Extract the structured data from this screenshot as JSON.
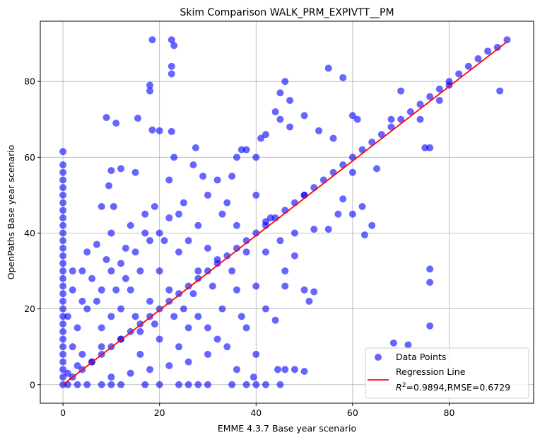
{
  "chart_data": {
    "type": "scatter",
    "title": "Skim Comparison WALK_PRM_EXPIVTT__PM",
    "xlabel": "EMME 4.3.7 Base year scenario",
    "ylabel": "OpenPaths Base year scenario",
    "xlim": [
      -4.7,
      97.5
    ],
    "ylim": [
      -4.9,
      95.9
    ],
    "xticks": [
      0,
      20,
      40,
      60,
      80
    ],
    "yticks": [
      0,
      20,
      40,
      60,
      80
    ],
    "grid": true,
    "legend_position": "bottom-right",
    "legend": {
      "points": "Data Points",
      "line_1": "Regression Line",
      "line_2": "=0.9894,RMSE=0.6729",
      "r2_symbol": "R",
      "r2_sup": "2"
    },
    "colors": {
      "points": "#0000ff",
      "line": "#ff0000"
    },
    "regression": {
      "x": [
        0,
        92
      ],
      "y": [
        0,
        90.5
      ]
    },
    "points": [
      [
        0,
        0
      ],
      [
        2,
        2
      ],
      [
        4,
        4
      ],
      [
        6,
        6
      ],
      [
        8,
        8
      ],
      [
        10,
        10
      ],
      [
        12,
        12
      ],
      [
        14,
        14
      ],
      [
        16,
        16
      ],
      [
        18,
        18
      ],
      [
        20,
        20
      ],
      [
        22,
        22
      ],
      [
        24,
        24
      ],
      [
        26,
        26
      ],
      [
        28,
        28
      ],
      [
        30,
        30
      ],
      [
        32,
        32
      ],
      [
        34,
        34
      ],
      [
        36,
        36
      ],
      [
        38,
        38
      ],
      [
        40,
        40
      ],
      [
        42,
        42
      ],
      [
        44,
        44
      ],
      [
        46,
        46
      ],
      [
        48,
        48
      ],
      [
        50,
        50
      ],
      [
        52,
        52
      ],
      [
        54,
        54
      ],
      [
        56,
        56
      ],
      [
        58,
        58
      ],
      [
        60,
        60
      ],
      [
        62,
        62
      ],
      [
        64,
        64
      ],
      [
        66,
        66
      ],
      [
        68,
        68
      ],
      [
        70,
        70
      ],
      [
        72,
        72
      ],
      [
        74,
        74
      ],
      [
        76,
        76
      ],
      [
        78,
        78
      ],
      [
        80,
        80
      ],
      [
        82,
        82
      ],
      [
        84,
        84
      ],
      [
        86,
        86
      ],
      [
        88,
        88
      ],
      [
        90,
        89
      ],
      [
        92,
        91
      ],
      [
        0,
        2
      ],
      [
        0,
        4
      ],
      [
        0,
        6
      ],
      [
        0,
        8
      ],
      [
        0,
        10
      ],
      [
        0,
        12
      ],
      [
        0,
        14
      ],
      [
        0,
        16
      ],
      [
        0,
        18
      ],
      [
        0,
        20
      ],
      [
        0,
        22
      ],
      [
        0,
        24
      ],
      [
        0,
        26
      ],
      [
        0,
        28
      ],
      [
        0,
        30
      ],
      [
        0,
        32
      ],
      [
        0,
        34
      ],
      [
        0,
        36
      ],
      [
        0,
        38
      ],
      [
        0,
        40
      ],
      [
        0,
        42
      ],
      [
        0,
        44
      ],
      [
        0,
        46
      ],
      [
        0,
        48
      ],
      [
        0,
        50
      ],
      [
        0,
        52
      ],
      [
        0,
        54
      ],
      [
        0,
        56
      ],
      [
        0,
        58
      ],
      [
        0,
        61.5
      ],
      [
        18.5,
        91
      ],
      [
        22.5,
        91
      ],
      [
        23,
        89.5
      ],
      [
        22.5,
        84
      ],
      [
        22.5,
        82
      ],
      [
        18,
        79
      ],
      [
        18,
        77.5
      ],
      [
        9,
        70.5
      ],
      [
        11,
        69
      ],
      [
        15.5,
        70.3
      ],
      [
        18.5,
        67.2
      ],
      [
        20,
        67
      ],
      [
        22.5,
        66.8
      ],
      [
        23,
        60
      ],
      [
        27.5,
        62.5
      ],
      [
        27,
        58
      ],
      [
        22,
        54
      ],
      [
        15,
        56
      ],
      [
        10,
        56.5
      ],
      [
        12,
        57
      ],
      [
        9.5,
        52.5
      ],
      [
        8,
        47
      ],
      [
        10.5,
        47
      ],
      [
        76,
        30.5
      ],
      [
        76,
        27
      ],
      [
        76,
        15.5
      ],
      [
        71.5,
        10.5
      ],
      [
        68.5,
        11
      ],
      [
        90.5,
        77.5
      ],
      [
        75,
        62.5
      ],
      [
        76,
        62.5
      ],
      [
        62.5,
        39.5
      ],
      [
        52,
        24.5
      ],
      [
        51,
        22
      ],
      [
        44.5,
        4
      ],
      [
        46,
        4
      ],
      [
        48,
        4
      ],
      [
        50,
        3.5
      ],
      [
        39.5,
        2
      ],
      [
        38,
        0
      ],
      [
        40,
        0
      ],
      [
        42,
        0
      ],
      [
        45,
        0
      ],
      [
        35,
        0
      ],
      [
        30,
        0
      ],
      [
        28,
        0
      ],
      [
        26,
        0
      ],
      [
        24,
        0
      ],
      [
        20,
        0
      ],
      [
        17,
        0
      ],
      [
        12,
        0
      ],
      [
        10,
        0
      ],
      [
        8,
        0
      ],
      [
        5,
        0
      ],
      [
        3,
        0
      ],
      [
        1,
        0
      ],
      [
        44,
        72
      ],
      [
        45,
        77
      ],
      [
        46,
        80
      ],
      [
        47,
        68
      ],
      [
        47,
        75
      ],
      [
        45,
        70
      ],
      [
        42,
        66
      ],
      [
        41,
        65
      ],
      [
        40,
        60
      ],
      [
        38,
        62
      ],
      [
        37,
        62
      ],
      [
        35,
        55
      ],
      [
        36,
        60
      ],
      [
        32,
        54
      ],
      [
        30,
        50
      ],
      [
        25,
        48
      ],
      [
        22,
        44
      ],
      [
        50,
        71
      ],
      [
        53,
        67
      ],
      [
        55,
        83.5
      ],
      [
        58,
        81
      ],
      [
        56,
        65
      ],
      [
        60,
        71
      ],
      [
        61,
        70
      ],
      [
        58,
        49
      ],
      [
        60,
        45
      ],
      [
        62,
        47
      ],
      [
        64,
        42
      ],
      [
        48,
        40
      ],
      [
        45,
        38
      ],
      [
        42,
        43
      ],
      [
        52,
        41
      ],
      [
        55,
        41
      ],
      [
        57,
        45
      ],
      [
        60,
        56
      ],
      [
        65,
        57
      ],
      [
        68,
        70
      ],
      [
        70,
        77.5
      ],
      [
        74,
        70
      ],
      [
        78,
        75
      ],
      [
        80,
        79
      ],
      [
        36,
        42
      ],
      [
        33,
        45
      ],
      [
        28,
        42
      ],
      [
        26,
        38
      ],
      [
        30,
        36
      ],
      [
        20,
        40
      ],
      [
        18,
        38
      ],
      [
        15,
        35
      ],
      [
        12,
        32
      ],
      [
        10,
        30
      ],
      [
        8,
        25
      ],
      [
        5,
        20
      ],
      [
        3,
        15
      ],
      [
        2,
        10
      ],
      [
        6,
        28
      ],
      [
        4,
        30
      ],
      [
        2,
        25
      ],
      [
        5,
        35
      ],
      [
        7,
        37
      ],
      [
        10,
        40
      ],
      [
        14,
        42
      ],
      [
        17,
        45
      ],
      [
        19,
        47
      ],
      [
        13,
        36
      ],
      [
        16,
        30
      ],
      [
        20,
        30
      ],
      [
        24,
        35
      ],
      [
        28,
        30
      ],
      [
        32,
        33
      ],
      [
        36,
        25
      ],
      [
        40,
        26
      ],
      [
        42,
        20
      ],
      [
        44,
        17
      ],
      [
        38,
        15
      ],
      [
        34,
        10
      ],
      [
        30,
        8
      ],
      [
        26,
        6
      ],
      [
        22,
        5
      ],
      [
        18,
        4
      ],
      [
        14,
        3
      ],
      [
        10,
        2
      ],
      [
        6,
        6
      ],
      [
        8,
        10
      ],
      [
        12,
        12
      ],
      [
        15,
        18
      ],
      [
        18,
        22
      ],
      [
        22,
        25
      ],
      [
        25,
        20
      ],
      [
        28,
        18
      ],
      [
        30,
        15
      ],
      [
        24,
        10
      ],
      [
        20,
        12
      ],
      [
        16,
        8
      ],
      [
        12,
        20
      ],
      [
        8,
        15
      ],
      [
        4,
        8
      ],
      [
        35,
        30
      ],
      [
        38,
        35
      ],
      [
        42,
        35
      ],
      [
        46,
        30
      ],
      [
        48,
        34
      ],
      [
        50,
        25
      ],
      [
        46,
        26
      ],
      [
        40,
        8
      ],
      [
        36,
        4
      ],
      [
        32,
        12
      ],
      [
        26,
        15
      ],
      [
        14,
        25
      ],
      [
        10,
        18
      ],
      [
        7,
        22
      ],
      [
        3,
        5
      ],
      [
        1,
        3
      ],
      [
        1,
        18
      ],
      [
        2,
        30
      ],
      [
        4,
        22
      ],
      [
        9,
        33
      ],
      [
        11,
        25
      ],
      [
        16,
        14
      ],
      [
        19,
        16
      ],
      [
        23,
        18
      ],
      [
        27,
        24
      ],
      [
        31,
        26
      ],
      [
        33,
        20
      ],
      [
        37,
        18
      ],
      [
        43,
        44
      ],
      [
        50,
        50
      ],
      [
        40,
        50
      ],
      [
        34,
        48
      ],
      [
        29,
        55
      ],
      [
        24,
        45
      ],
      [
        21,
        38
      ],
      [
        17,
        40
      ],
      [
        13,
        28
      ]
    ]
  }
}
